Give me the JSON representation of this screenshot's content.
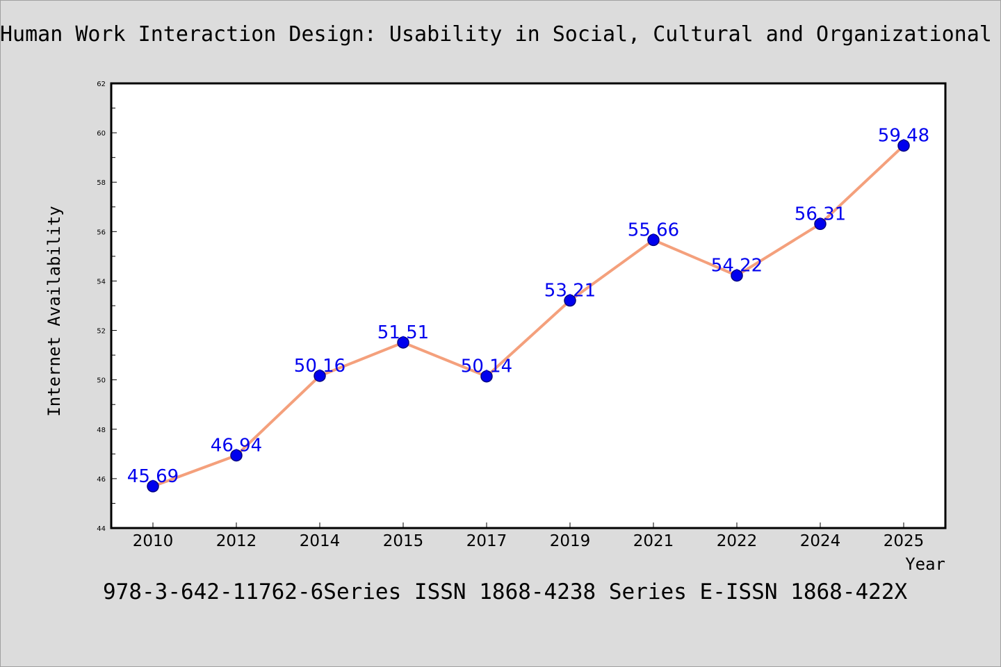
{
  "chart_data": {
    "type": "line",
    "title": "Human Work Interaction Design: Usability in Social, Cultural and Organizational",
    "xlabel": "Year",
    "ylabel": "Internet Availability",
    "categories": [
      "2010",
      "2012",
      "2014",
      "2015",
      "2017",
      "2019",
      "2021",
      "2022",
      "2024",
      "2025"
    ],
    "series": [
      {
        "values": [
          45.69,
          46.94,
          50.16,
          51.51,
          50.14,
          53.21,
          55.66,
          54.22,
          56.31,
          59.48
        ],
        "labels": [
          "45.69",
          "46.94",
          "50.16",
          "51.51",
          "50.14",
          "53.21",
          "55.66",
          "54.22",
          "56.31",
          "59.48"
        ]
      }
    ],
    "ylim": [
      44,
      62
    ],
    "yticks": [
      "44",
      "46",
      "48",
      "50",
      "52",
      "54",
      "56",
      "58",
      "60",
      "62"
    ],
    "grid": false,
    "legend": "none",
    "colors": {
      "line": "#f4a07c",
      "marker": "#0000ee",
      "marker_edge": "#000080",
      "label": "#0000ee"
    }
  },
  "footer": "978-3-642-11762-6Series ISSN 1868-4238 Series E-ISSN 1868-422X"
}
